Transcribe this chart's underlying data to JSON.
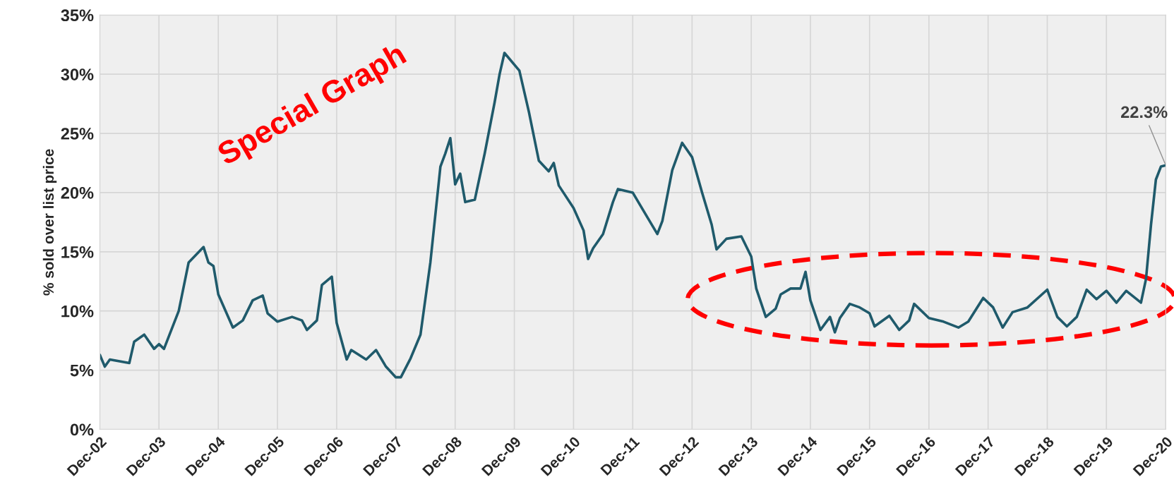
{
  "chart_data": {
    "type": "line",
    "ylabel": "% sold over list price",
    "x": [
      "2002-12",
      "2003-01",
      "2003-02",
      "2003-06",
      "2003-07",
      "2003-09",
      "2003-11",
      "2003-12",
      "2004-01",
      "2004-04",
      "2004-06",
      "2004-09",
      "2004-10",
      "2004-11",
      "2004-12",
      "2005-03",
      "2005-05",
      "2005-07",
      "2005-09",
      "2005-10",
      "2005-12",
      "2006-03",
      "2006-05",
      "2006-06",
      "2006-08",
      "2006-09",
      "2006-11",
      "2006-12",
      "2007-02",
      "2007-03",
      "2007-06",
      "2007-08",
      "2007-10",
      "2007-12",
      "2008-01",
      "2008-03",
      "2008-05",
      "2008-07",
      "2008-09",
      "2008-10",
      "2008-11",
      "2008-12",
      "2009-01",
      "2009-02",
      "2009-04",
      "2009-06",
      "2009-08",
      "2009-09",
      "2009-10",
      "2010-01",
      "2010-03",
      "2010-05",
      "2010-07",
      "2010-08",
      "2010-09",
      "2010-12",
      "2011-02",
      "2011-03",
      "2011-04",
      "2011-06",
      "2011-08",
      "2011-09",
      "2011-12",
      "2012-03",
      "2012-05",
      "2012-06",
      "2012-08",
      "2012-10",
      "2012-12",
      "2013-02",
      "2013-04",
      "2013-05",
      "2013-07",
      "2013-10",
      "2013-12",
      "2014-01",
      "2014-03",
      "2014-05",
      "2014-06",
      "2014-08",
      "2014-10",
      "2014-11",
      "2014-12",
      "2015-02",
      "2015-04",
      "2015-05",
      "2015-06",
      "2015-08",
      "2015-10",
      "2015-12",
      "2016-01",
      "2016-04",
      "2016-06",
      "2016-08",
      "2016-09",
      "2016-12",
      "2017-03",
      "2017-06",
      "2017-08",
      "2017-11",
      "2018-01",
      "2018-03",
      "2018-05",
      "2018-08",
      "2018-12",
      "2019-02",
      "2019-04",
      "2019-06",
      "2019-08",
      "2019-10",
      "2019-12",
      "2020-02",
      "2020-04",
      "2020-07",
      "2020-08",
      "2020-09",
      "2020-10",
      "2020-11",
      "2020-12"
    ],
    "series": [
      {
        "color": "#1f5a6b",
        "values": [
          6.3,
          5.3,
          5.9,
          5.6,
          7.4,
          8.0,
          6.8,
          7.2,
          6.8,
          10.0,
          14.1,
          15.4,
          14.1,
          13.8,
          11.4,
          8.6,
          9.2,
          10.9,
          11.3,
          9.8,
          9.1,
          9.5,
          9.2,
          8.4,
          9.2,
          12.2,
          12.9,
          9.0,
          5.9,
          6.7,
          5.9,
          6.7,
          5.3,
          4.4,
          4.4,
          6.0,
          8.0,
          14.1,
          22.2,
          23.3,
          24.6,
          20.7,
          21.6,
          19.2,
          19.4,
          23.3,
          27.6,
          30.0,
          31.8,
          30.3,
          26.8,
          22.7,
          21.8,
          22.5,
          20.6,
          18.7,
          16.8,
          14.4,
          15.3,
          16.5,
          19.2,
          20.3,
          20.0,
          17.9,
          16.5,
          17.6,
          21.9,
          24.2,
          23.0,
          20.0,
          17.3,
          15.2,
          16.1,
          16.3,
          14.6,
          11.9,
          9.5,
          10.2,
          11.4,
          11.9,
          11.9,
          13.3,
          10.9,
          8.4,
          9.5,
          8.2,
          9.4,
          10.6,
          10.3,
          9.8,
          8.7,
          9.6,
          8.4,
          9.2,
          10.6,
          9.4,
          9.1,
          8.6,
          9.1,
          11.1,
          10.3,
          8.6,
          9.9,
          10.3,
          11.8,
          9.5,
          8.7,
          9.5,
          11.8,
          11.0,
          11.7,
          10.7,
          11.7,
          10.7,
          12.7,
          17.3,
          21.1,
          22.2,
          22.3
        ]
      }
    ],
    "xlim": [
      "2002-12",
      "2020-12"
    ],
    "xticks": [
      {
        "value": "2002-12",
        "label": "Dec-02"
      },
      {
        "value": "2003-12",
        "label": "Dec-03"
      },
      {
        "value": "2004-12",
        "label": "Dec-04"
      },
      {
        "value": "2005-12",
        "label": "Dec-05"
      },
      {
        "value": "2006-12",
        "label": "Dec-06"
      },
      {
        "value": "2007-12",
        "label": "Dec-07"
      },
      {
        "value": "2008-12",
        "label": "Dec-08"
      },
      {
        "value": "2009-12",
        "label": "Dec-09"
      },
      {
        "value": "2010-12",
        "label": "Dec-10"
      },
      {
        "value": "2011-12",
        "label": "Dec-11"
      },
      {
        "value": "2012-12",
        "label": "Dec-12"
      },
      {
        "value": "2013-12",
        "label": "Dec-13"
      },
      {
        "value": "2014-12",
        "label": "Dec-14"
      },
      {
        "value": "2015-12",
        "label": "Dec-15"
      },
      {
        "value": "2016-12",
        "label": "Dec-16"
      },
      {
        "value": "2017-12",
        "label": "Dec-17"
      },
      {
        "value": "2018-12",
        "label": "Dec-18"
      },
      {
        "value": "2019-12",
        "label": "Dec-19"
      },
      {
        "value": "2020-12",
        "label": "Dec-20"
      }
    ],
    "ylim": [
      0,
      35
    ],
    "yticks": [
      {
        "value": 0,
        "label": "0%"
      },
      {
        "value": 5,
        "label": "5%"
      },
      {
        "value": 10,
        "label": "10%"
      },
      {
        "value": 15,
        "label": "15%"
      },
      {
        "value": 20,
        "label": "20%"
      },
      {
        "value": 25,
        "label": "25%"
      },
      {
        "value": 30,
        "label": "30%"
      },
      {
        "value": 35,
        "label": "35%"
      }
    ],
    "grid": true,
    "marker": "none",
    "line_style": "solid",
    "annotations": [
      "Special Graph",
      {
        "text": "22.3%",
        "x": "2020-12",
        "y": 22.3
      }
    ]
  }
}
